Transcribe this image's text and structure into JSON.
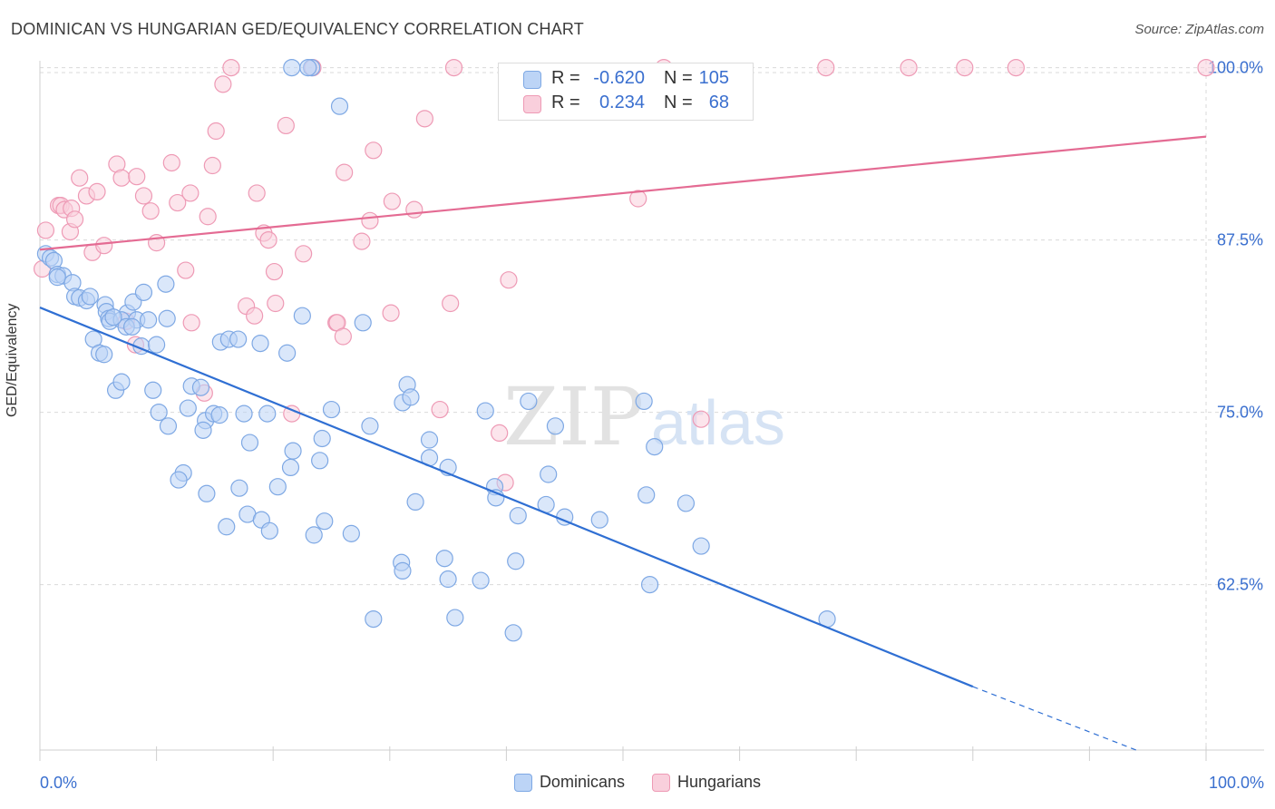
{
  "title": "DOMINICAN VS HUNGARIAN GED/EQUIVALENCY CORRELATION CHART",
  "source": "Source: ZipAtlas.com",
  "watermark": {
    "zip": "ZIP",
    "atlas": "atlas"
  },
  "stats_legend": {
    "rows": [
      {
        "r_label": "R =",
        "r_value": "-0.620",
        "n_label": "N =",
        "n_value": "105"
      },
      {
        "r_label": "R =",
        "r_value": "0.234",
        "n_label": "N =",
        "n_value": "68"
      }
    ]
  },
  "bottom_legend": {
    "dominicans": "Dominicans",
    "hungarians": "Hungarians"
  },
  "colors": {
    "blue_fill": "#bcd4f6",
    "blue_stroke": "#7ea8e4",
    "blue_line": "#2f6fd3",
    "pink_fill": "#f9cfdc",
    "pink_stroke": "#ee9ab5",
    "pink_line": "#e46b93",
    "tick_label": "#3a6fcf",
    "grid": "#d9d9d9"
  },
  "chart_data": {
    "type": "scatter",
    "title": "DOMINICAN VS HUNGARIAN GED/EQUIVALENCY CORRELATION CHART",
    "xlabel": "",
    "ylabel": "GED/Equivalency",
    "xlim": [
      0,
      100
    ],
    "ylim": [
      50.5,
      100.5
    ],
    "x_tick_labels": [
      "0.0%",
      "100.0%"
    ],
    "y_ticks": [
      62.5,
      75.0,
      87.5,
      100.0
    ],
    "y_tick_labels": [
      "62.5%",
      "75.0%",
      "87.5%",
      "100.0%"
    ],
    "grid": true,
    "legend_placement": "bottom",
    "series": [
      {
        "name": "Dominicans",
        "r": -0.62,
        "n": 105,
        "trend": {
          "x": [
            0,
            80
          ],
          "y": [
            82.6,
            55.1
          ],
          "dashed_extension_to": [
            94,
            50.5
          ]
        },
        "points": [
          [
            0.5,
            86.5
          ],
          [
            0.9,
            86.2
          ],
          [
            1.2,
            86.0
          ],
          [
            1.5,
            85.0
          ],
          [
            2.0,
            84.9
          ],
          [
            1.5,
            84.8
          ],
          [
            2.8,
            84.4
          ],
          [
            3.0,
            83.4
          ],
          [
            3.4,
            83.3
          ],
          [
            4.0,
            83.1
          ],
          [
            4.3,
            83.4
          ],
          [
            5.6,
            82.8
          ],
          [
            5.7,
            82.3
          ],
          [
            5.9,
            81.8
          ],
          [
            6.0,
            81.6
          ],
          [
            7.5,
            82.2
          ],
          [
            8.0,
            83.0
          ],
          [
            7.0,
            81.7
          ],
          [
            8.3,
            81.7
          ],
          [
            7.4,
            81.2
          ],
          [
            9.3,
            81.7
          ],
          [
            10.9,
            81.8
          ],
          [
            6.3,
            81.9
          ],
          [
            7.9,
            81.2
          ],
          [
            10.8,
            84.3
          ],
          [
            4.6,
            80.3
          ],
          [
            5.1,
            79.3
          ],
          [
            5.5,
            79.2
          ],
          [
            8.7,
            79.8
          ],
          [
            10.0,
            79.9
          ],
          [
            15.5,
            80.1
          ],
          [
            16.2,
            80.3
          ],
          [
            17.0,
            80.3
          ],
          [
            18.9,
            80.0
          ],
          [
            21.2,
            79.3
          ],
          [
            22.5,
            82.0
          ],
          [
            27.7,
            81.5
          ],
          [
            8.9,
            83.7
          ],
          [
            6.5,
            76.6
          ],
          [
            7.0,
            77.2
          ],
          [
            9.7,
            76.6
          ],
          [
            10.2,
            75.0
          ],
          [
            11.0,
            74.0
          ],
          [
            12.7,
            75.3
          ],
          [
            13.0,
            76.9
          ],
          [
            13.8,
            76.8
          ],
          [
            14.2,
            74.4
          ],
          [
            14.9,
            74.9
          ],
          [
            15.4,
            74.8
          ],
          [
            17.5,
            74.9
          ],
          [
            14.0,
            73.7
          ],
          [
            19.5,
            74.9
          ],
          [
            18.0,
            72.8
          ],
          [
            21.7,
            72.2
          ],
          [
            21.5,
            71.0
          ],
          [
            24.2,
            73.1
          ],
          [
            25.0,
            75.2
          ],
          [
            24.0,
            71.5
          ],
          [
            28.3,
            74.0
          ],
          [
            31.1,
            75.7
          ],
          [
            31.5,
            77.0
          ],
          [
            31.8,
            76.1
          ],
          [
            33.4,
            73.0
          ],
          [
            33.4,
            71.7
          ],
          [
            35.0,
            71.0
          ],
          [
            38.2,
            75.1
          ],
          [
            41.9,
            75.8
          ],
          [
            39.0,
            69.6
          ],
          [
            39.1,
            68.8
          ],
          [
            43.6,
            70.5
          ],
          [
            44.2,
            74.0
          ],
          [
            51.8,
            75.8
          ],
          [
            12.3,
            70.6
          ],
          [
            11.9,
            70.1
          ],
          [
            14.3,
            69.1
          ],
          [
            17.1,
            69.5
          ],
          [
            20.4,
            69.6
          ],
          [
            24.4,
            67.1
          ],
          [
            23.5,
            66.1
          ],
          [
            26.7,
            66.2
          ],
          [
            32.2,
            68.5
          ],
          [
            41.0,
            67.5
          ],
          [
            43.4,
            68.3
          ],
          [
            45.0,
            67.4
          ],
          [
            48.0,
            67.2
          ],
          [
            52.0,
            69.0
          ],
          [
            52.7,
            72.5
          ],
          [
            55.4,
            68.4
          ],
          [
            16.0,
            66.7
          ],
          [
            17.8,
            67.6
          ],
          [
            19.0,
            67.2
          ],
          [
            19.7,
            66.4
          ],
          [
            31.0,
            64.1
          ],
          [
            34.7,
            64.4
          ],
          [
            40.8,
            64.2
          ],
          [
            35.0,
            62.9
          ],
          [
            31.1,
            63.5
          ],
          [
            37.8,
            62.8
          ],
          [
            56.7,
            65.3
          ],
          [
            52.3,
            62.5
          ],
          [
            35.6,
            60.1
          ],
          [
            28.6,
            60.0
          ],
          [
            40.6,
            59.0
          ],
          [
            67.5,
            60.0
          ],
          [
            21.6,
            100.0
          ],
          [
            23.3,
            100.0
          ],
          [
            23.0,
            100.0
          ],
          [
            25.7,
            97.2
          ]
        ]
      },
      {
        "name": "Hungarians",
        "r": 0.234,
        "n": 68,
        "trend": {
          "x": [
            0,
            100
          ],
          "y": [
            86.8,
            95.0
          ]
        },
        "points": [
          [
            0.5,
            88.2
          ],
          [
            0.2,
            85.4
          ],
          [
            1.6,
            90.0
          ],
          [
            1.8,
            90.0
          ],
          [
            2.1,
            89.7
          ],
          [
            2.7,
            89.8
          ],
          [
            2.6,
            88.1
          ],
          [
            3.0,
            89.0
          ],
          [
            3.4,
            92.0
          ],
          [
            4.0,
            90.7
          ],
          [
            4.5,
            86.6
          ],
          [
            5.5,
            87.1
          ],
          [
            4.9,
            91.0
          ],
          [
            6.6,
            93.0
          ],
          [
            7.0,
            92.0
          ],
          [
            8.3,
            92.1
          ],
          [
            8.9,
            90.7
          ],
          [
            9.5,
            89.6
          ],
          [
            10.0,
            87.3
          ],
          [
            11.3,
            93.1
          ],
          [
            11.8,
            90.2
          ],
          [
            12.9,
            90.9
          ],
          [
            14.4,
            89.2
          ],
          [
            14.8,
            92.9
          ],
          [
            15.1,
            95.4
          ],
          [
            15.7,
            98.8
          ],
          [
            16.4,
            100.0
          ],
          [
            17.7,
            82.7
          ],
          [
            18.4,
            82.0
          ],
          [
            18.6,
            90.9
          ],
          [
            19.2,
            88.0
          ],
          [
            19.6,
            87.5
          ],
          [
            20.1,
            85.2
          ],
          [
            20.2,
            82.9
          ],
          [
            21.1,
            95.8
          ],
          [
            22.6,
            86.5
          ],
          [
            23.4,
            100.0
          ],
          [
            25.4,
            81.5
          ],
          [
            25.5,
            81.5
          ],
          [
            26.0,
            80.5
          ],
          [
            26.1,
            92.4
          ],
          [
            27.6,
            87.4
          ],
          [
            28.3,
            88.9
          ],
          [
            28.6,
            94.0
          ],
          [
            30.1,
            82.2
          ],
          [
            30.2,
            90.3
          ],
          [
            32.1,
            89.7
          ],
          [
            33.0,
            96.3
          ],
          [
            35.2,
            82.9
          ],
          [
            35.5,
            100.0
          ],
          [
            40.2,
            84.6
          ],
          [
            39.4,
            73.5
          ],
          [
            39.9,
            69.9
          ],
          [
            53.5,
            100.0
          ],
          [
            56.7,
            74.5
          ],
          [
            67.4,
            100.0
          ],
          [
            74.5,
            100.0
          ],
          [
            79.3,
            100.0
          ],
          [
            83.7,
            100.0
          ],
          [
            100.0,
            100.0
          ],
          [
            51.3,
            90.5
          ],
          [
            14.1,
            76.4
          ],
          [
            8.2,
            79.9
          ],
          [
            13.0,
            81.5
          ],
          [
            7.4,
            81.6
          ],
          [
            21.6,
            74.9
          ],
          [
            34.3,
            75.2
          ],
          [
            12.5,
            85.3
          ]
        ]
      }
    ]
  }
}
